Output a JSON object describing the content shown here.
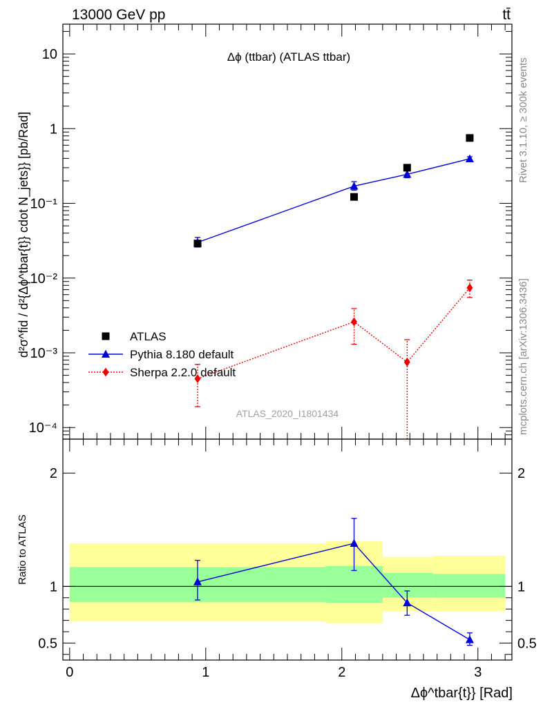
{
  "header": {
    "energy_label": "13000 GeV pp",
    "process_label": "tt̄"
  },
  "side_labels": {
    "rivet": "Rivet 3.1.10, ≥ 300k events",
    "mcplots": "mcplots.cern.ch [arXiv:1306.3436]"
  },
  "analysis_id": "ATLAS_2020_I1801434",
  "colors": {
    "data": "#000000",
    "pythia": "#0000dd",
    "sherpa": "#ee0000",
    "band_outer": "#ffff99",
    "band_inner": "#99ff99"
  },
  "chart_data": [
    {
      "type": "scatter",
      "title": "Δϕ (ttbar) (ATLAS ttbar)",
      "ylabel": "d²σ^fid / d²{Δϕ^tbar{t}} cdot N_jets}} [pb/Rad]",
      "yscale": "log",
      "ylim": [
        7e-05,
        25
      ],
      "xlim": [
        -0.05,
        3.25
      ],
      "y_tick_labels": [
        "10⁻⁴",
        "10⁻³",
        "10⁻²",
        "10⁻¹",
        "1",
        "10"
      ],
      "legend_position": "lower-left",
      "series": [
        {
          "name": "ATLAS",
          "marker": "square",
          "x": [
            0.94,
            2.09,
            2.48,
            2.94
          ],
          "y": [
            0.029,
            0.122,
            0.3,
            0.75
          ]
        },
        {
          "name": "Pythia 8.180 default",
          "marker": "triangle",
          "line": "solid",
          "x": [
            0.94,
            2.09,
            2.48,
            2.94
          ],
          "y": [
            0.03,
            0.17,
            0.245,
            0.395
          ],
          "y_low": [
            0.026,
            0.15,
            0.22,
            0.37
          ],
          "y_high": [
            0.035,
            0.195,
            0.27,
            0.42
          ]
        },
        {
          "name": "Sherpa 2.2.0 default",
          "marker": "diamond",
          "line": "dotted",
          "x": [
            0.94,
            2.09,
            2.48,
            2.94
          ],
          "y": [
            0.00045,
            0.0026,
            0.00075,
            0.0074
          ],
          "y_low": [
            0.00019,
            0.0013,
            7e-05,
            0.0055
          ],
          "y_high": [
            0.0007,
            0.0039,
            0.0015,
            0.0094
          ]
        }
      ]
    },
    {
      "type": "scatter",
      "ylabel": "Ratio to ATLAS",
      "xlabel": "Δϕ^tbar{t}} [Rad]",
      "xlim": [
        -0.05,
        3.25
      ],
      "ylim": [
        0.35,
        2.3
      ],
      "x_tick_labels": [
        "0",
        "1",
        "2",
        "3"
      ],
      "y_tick_labels": [
        "0.5",
        "1",
        "2"
      ],
      "reference_line": 1,
      "bands": [
        {
          "x_low": 0.0,
          "x_high": 1.88,
          "inner_low": 0.86,
          "inner_high": 1.17,
          "outer_low": 0.69,
          "outer_high": 1.38
        },
        {
          "x_low": 1.88,
          "x_high": 2.3,
          "inner_low": 0.855,
          "inner_high": 1.18,
          "outer_low": 0.675,
          "outer_high": 1.4
        },
        {
          "x_low": 2.3,
          "x_high": 2.67,
          "inner_low": 0.9,
          "inner_high": 1.12,
          "outer_low": 0.78,
          "outer_high": 1.26
        },
        {
          "x_low": 2.67,
          "x_high": 3.2,
          "inner_low": 0.9,
          "inner_high": 1.11,
          "outer_low": 0.78,
          "outer_high": 1.27
        }
      ],
      "series": [
        {
          "name": "Pythia 8.180 default",
          "marker": "triangle",
          "line": "solid",
          "x": [
            0.94,
            2.09,
            2.48,
            2.94
          ],
          "y": [
            1.04,
            1.38,
            0.855,
            0.53
          ],
          "y_low": [
            0.88,
            1.14,
            0.745,
            0.48
          ],
          "y_high": [
            1.23,
            1.6,
            0.96,
            0.59
          ]
        }
      ]
    }
  ]
}
